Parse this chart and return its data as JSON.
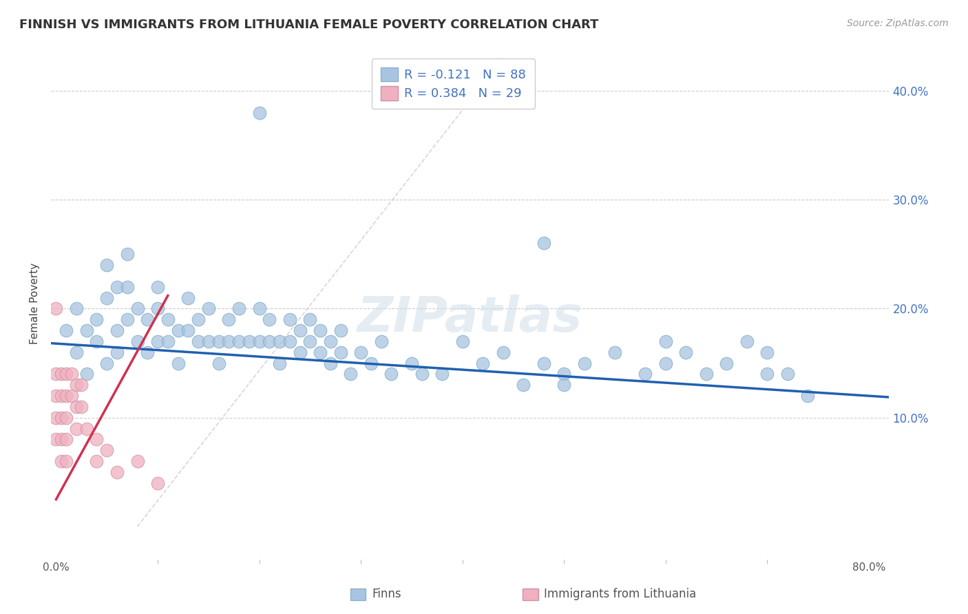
{
  "title": "FINNISH VS IMMIGRANTS FROM LITHUANIA FEMALE POVERTY CORRELATION CHART",
  "source": "Source: ZipAtlas.com",
  "ylabel": "Female Poverty",
  "ytick_labels": [
    "10.0%",
    "20.0%",
    "30.0%",
    "40.0%"
  ],
  "ytick_values": [
    0.1,
    0.2,
    0.3,
    0.4
  ],
  "xlim": [
    -0.005,
    0.82
  ],
  "ylim": [
    -0.03,
    0.44
  ],
  "legend_r1": "R = -0.121   N = 88",
  "legend_r2": "R = 0.384   N = 29",
  "legend_label1": "Finns",
  "legend_label2": "Immigrants from Lithuania",
  "color_finns": "#a8c4e0",
  "color_lith": "#f0b0c0",
  "color_line_finns": "#2060b0",
  "color_line_lith": "#d03050",
  "color_diagonal": "#d8c8c8",
  "background": "#ffffff",
  "watermark": "ZIPatlas",
  "finns_R": -0.121,
  "finns_intercept": 0.168,
  "finns_slope": -0.068,
  "lith_R": 0.384,
  "lith_intercept": 0.02,
  "lith_slope": 1.5,
  "finns_x": [
    0.01,
    0.02,
    0.02,
    0.03,
    0.03,
    0.04,
    0.04,
    0.05,
    0.05,
    0.05,
    0.06,
    0.06,
    0.06,
    0.07,
    0.07,
    0.07,
    0.08,
    0.08,
    0.09,
    0.09,
    0.1,
    0.1,
    0.1,
    0.11,
    0.11,
    0.12,
    0.12,
    0.13,
    0.13,
    0.14,
    0.14,
    0.15,
    0.15,
    0.16,
    0.16,
    0.17,
    0.17,
    0.18,
    0.18,
    0.19,
    0.2,
    0.2,
    0.2,
    0.21,
    0.21,
    0.22,
    0.22,
    0.23,
    0.23,
    0.24,
    0.24,
    0.25,
    0.25,
    0.26,
    0.26,
    0.27,
    0.27,
    0.28,
    0.28,
    0.29,
    0.3,
    0.31,
    0.32,
    0.33,
    0.35,
    0.36,
    0.38,
    0.4,
    0.42,
    0.44,
    0.46,
    0.48,
    0.5,
    0.52,
    0.55,
    0.58,
    0.6,
    0.62,
    0.64,
    0.66,
    0.68,
    0.7,
    0.72,
    0.74,
    0.48,
    0.5,
    0.6,
    0.7
  ],
  "finns_y": [
    0.18,
    0.16,
    0.2,
    0.14,
    0.18,
    0.17,
    0.19,
    0.15,
    0.21,
    0.24,
    0.18,
    0.22,
    0.16,
    0.19,
    0.22,
    0.25,
    0.17,
    0.2,
    0.16,
    0.19,
    0.17,
    0.2,
    0.22,
    0.17,
    0.19,
    0.18,
    0.15,
    0.18,
    0.21,
    0.17,
    0.19,
    0.17,
    0.2,
    0.17,
    0.15,
    0.17,
    0.19,
    0.17,
    0.2,
    0.17,
    0.38,
    0.17,
    0.2,
    0.17,
    0.19,
    0.17,
    0.15,
    0.17,
    0.19,
    0.16,
    0.18,
    0.17,
    0.19,
    0.16,
    0.18,
    0.15,
    0.17,
    0.16,
    0.18,
    0.14,
    0.16,
    0.15,
    0.17,
    0.14,
    0.15,
    0.14,
    0.14,
    0.17,
    0.15,
    0.16,
    0.13,
    0.15,
    0.14,
    0.15,
    0.16,
    0.14,
    0.15,
    0.16,
    0.14,
    0.15,
    0.17,
    0.14,
    0.14,
    0.12,
    0.26,
    0.13,
    0.17,
    0.16
  ],
  "lith_x": [
    0.0,
    0.0,
    0.0,
    0.0,
    0.0,
    0.005,
    0.005,
    0.005,
    0.005,
    0.005,
    0.01,
    0.01,
    0.01,
    0.01,
    0.01,
    0.015,
    0.015,
    0.02,
    0.02,
    0.02,
    0.025,
    0.025,
    0.03,
    0.04,
    0.04,
    0.05,
    0.06,
    0.08,
    0.1
  ],
  "lith_y": [
    0.2,
    0.14,
    0.12,
    0.1,
    0.08,
    0.14,
    0.12,
    0.1,
    0.08,
    0.06,
    0.14,
    0.12,
    0.1,
    0.08,
    0.06,
    0.14,
    0.12,
    0.13,
    0.11,
    0.09,
    0.13,
    0.11,
    0.09,
    0.08,
    0.06,
    0.07,
    0.05,
    0.06,
    0.04
  ]
}
